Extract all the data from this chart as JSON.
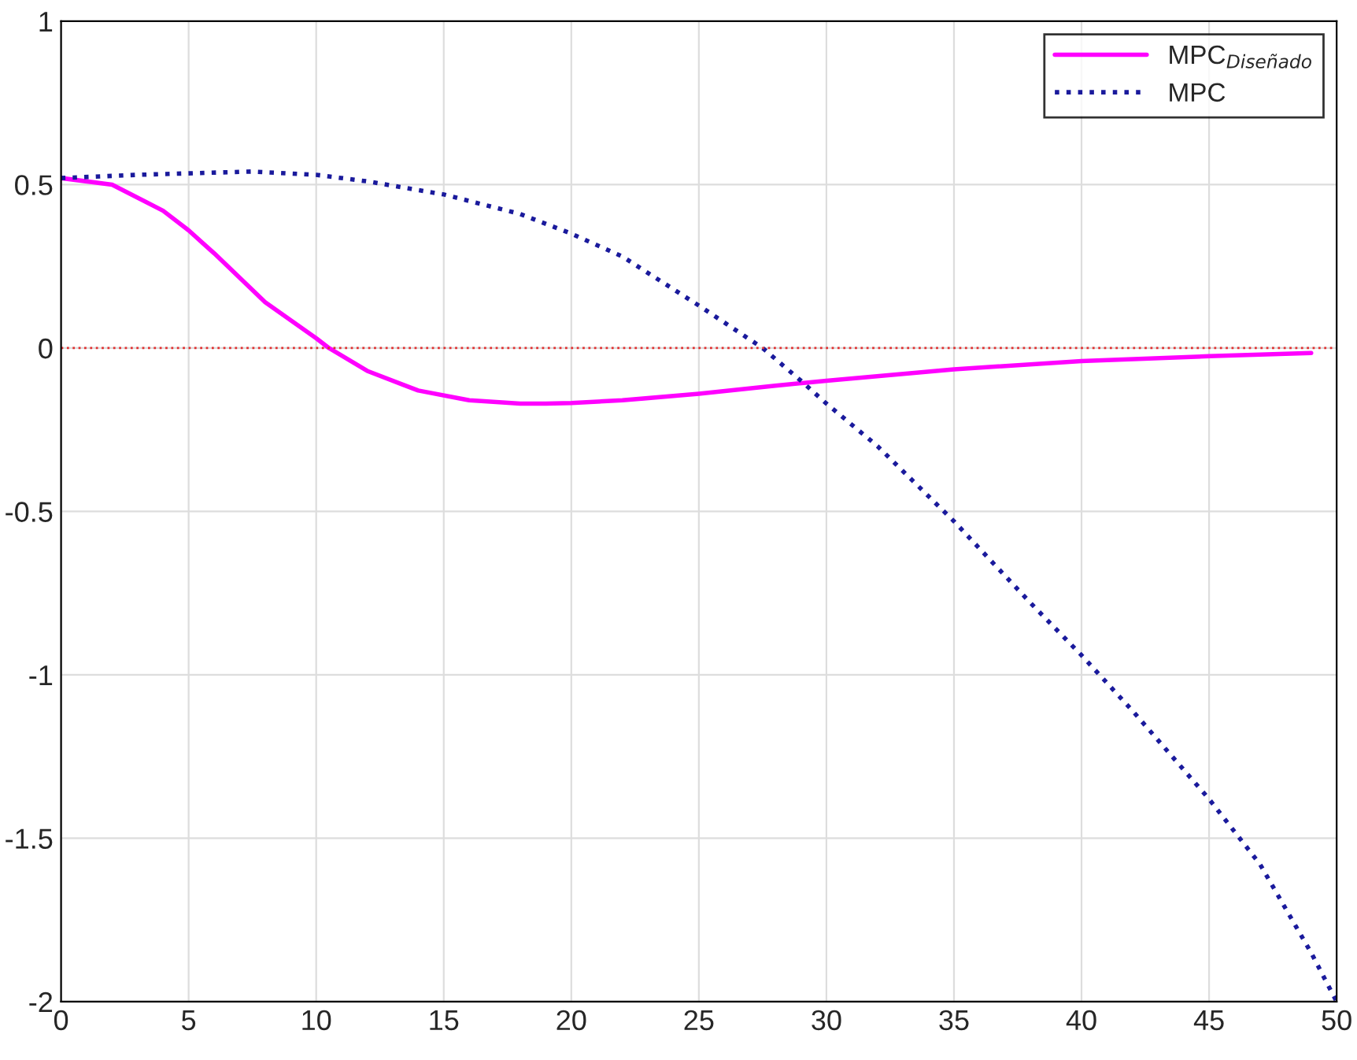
{
  "chart_data": {
    "type": "line",
    "xlim": [
      0,
      50
    ],
    "xticks": [
      0,
      5,
      10,
      15,
      20,
      25,
      30,
      35,
      40,
      45,
      50
    ],
    "ylim": [
      -2,
      1
    ],
    "yticks": [
      -2,
      -1.5,
      -1,
      -0.5,
      0,
      0.5,
      1
    ],
    "grid": true,
    "legend": "top right",
    "ref_lines": [
      {
        "axis": "y",
        "value": 0,
        "color": "#e03030",
        "line_style": "dotted"
      }
    ],
    "series": [
      {
        "name": "MPC$_{Diseñado}$",
        "color": "#ff00ff",
        "line_style": "solid",
        "x": [
          0,
          2,
          4,
          5,
          6,
          8,
          10,
          10.5,
          12,
          14,
          16,
          18,
          19,
          20,
          22,
          25,
          28,
          30,
          35,
          40,
          45,
          49
        ],
        "values": [
          0.52,
          0.5,
          0.42,
          0.36,
          0.29,
          0.14,
          0.03,
          0,
          -0.07,
          -0.13,
          -0.16,
          -0.17,
          -0.17,
          -0.168,
          -0.16,
          -0.14,
          -0.115,
          -0.1,
          -0.065,
          -0.04,
          -0.025,
          -0.015
        ]
      },
      {
        "name": "MPC",
        "color": "#1a1a9c",
        "line_style": "dotted",
        "x": [
          0,
          3,
          7.5,
          10,
          12,
          15,
          18,
          20,
          22,
          25,
          27.5,
          29,
          30,
          32,
          35,
          38,
          40,
          42,
          45,
          47,
          49,
          50
        ],
        "values": [
          0.52,
          0.53,
          0.54,
          0.53,
          0.51,
          0.47,
          0.41,
          0.35,
          0.28,
          0.13,
          0,
          -0.1,
          -0.17,
          -0.3,
          -0.53,
          -0.78,
          -0.94,
          -1.11,
          -1.38,
          -1.58,
          -1.85,
          -2.0
        ]
      }
    ]
  }
}
